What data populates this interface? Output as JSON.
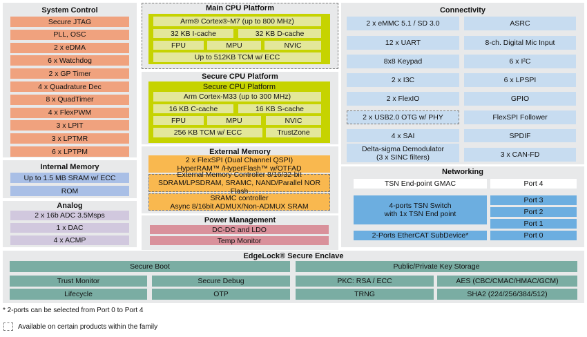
{
  "system_control": {
    "title": "System Control",
    "items": [
      "Secure JTAG",
      "PLL, OSC",
      "2 x eDMA",
      "6 x Watchdog",
      "2 x GP Timer",
      "4 x Quadrature Dec",
      "8 x QuadTimer",
      "4 x FlexPWM",
      "3 x LPIT",
      "3 x LPTMR",
      "6 x LPTPM"
    ]
  },
  "internal_memory": {
    "title": "Internal Memory",
    "items": [
      "Up to 1.5 MB SRAM w/ ECC",
      "ROM"
    ]
  },
  "analog": {
    "title": "Analog",
    "items": [
      "2 x 16b ADC 3.5Msps",
      "1 x DAC",
      "4 x ACMP"
    ]
  },
  "main_cpu": {
    "title": "Main CPU Platform",
    "core": "Arm® Cortex®-M7 (up to 800 MHz)",
    "icache": "32 KB I-cache",
    "dcache": "32 KB D-cache",
    "fpu": "FPU",
    "mpu": "MPU",
    "nvic": "NVIC",
    "tcm": "Up to 512KB TCM w/ ECC"
  },
  "secure_cpu": {
    "title": "Secure CPU Platform",
    "subtitle": "Secure CPU Platform",
    "core": "Arm Cortex-M33 (up to 300 MHz)",
    "ccache": "16 KB C-cache",
    "scache": "16 KB S-cache",
    "fpu": "FPU",
    "mpu": "MPU",
    "nvic": "NVIC",
    "tcm": "256 KB TCM w/ ECC",
    "trustzone": "TrustZone"
  },
  "external_memory": {
    "title": "External Memory",
    "flexspi": "2 x FlexSPI (Dual Channel QSPI)\nHyperRAM™ /HyperFlash™ w/OTFAD",
    "emc": "External Memory Controller 8/16/32-bit\nSDRAM/LPSDRAM, SRAMC, NAND/Parallel NOR Flash",
    "sramc": "SRAMC controller\nAsync 8/16bit ADMUX/Non-ADMUX SRAM"
  },
  "power": {
    "title": "Power Management",
    "items": [
      "DC-DC and LDO",
      "Temp Monitor"
    ]
  },
  "connectivity": {
    "title": "Connectivity",
    "left": [
      "2 x eMMC 5.1 / SD 3.0",
      "12 x UART",
      "8x8 Keypad",
      "2 x I3C",
      "2 x FlexIO",
      "2 x USB2.0 OTG w/ PHY",
      "4 x SAI",
      "Delta-sigma Demodulator\n(3 x SINC filters)"
    ],
    "right": [
      "ASRC",
      "8-ch. Digital Mic Input",
      "6 x I²C",
      "6 x LPSPI",
      "GPIO",
      "FlexSPI Follower",
      "SPDIF",
      "3 x CAN-FD"
    ]
  },
  "networking": {
    "title": "Networking",
    "gmac": "TSN End-point GMAC",
    "switch": "4-ports TSN Switch\nwith 1x TSN End point",
    "ethercat": "2-Ports EtherCAT SubDevice*",
    "ports": [
      "Port 4",
      "Port 3",
      "Port 2",
      "Port 1",
      "Port 0"
    ]
  },
  "edgelock": {
    "title": "EdgeLock® Secure Enclave",
    "items": [
      "Secure Boot",
      "Public/Private Key Storage",
      "Trust Monitor",
      "Secure Debug",
      "PKC: RSA / ECC",
      "AES (CBC/CMAC/HMAC/GCM)",
      "Lifecycle",
      "OTP",
      "TRNG",
      "SHA2 (224/256/384/512)"
    ]
  },
  "footnote": "* 2-ports can be selected from Port 0 to Port 4",
  "legend": "Available on certain products within the family",
  "colors": {
    "system_control": "#f0a27e",
    "cpu_outer": "#c6d300",
    "cpu_inner": "#e3e79a",
    "external_memory": "#f9b84f",
    "power": "#d9919b",
    "internal_memory": "#a9bfe6",
    "analog": "#d1c8de",
    "connectivity": "#c7dcf0",
    "networking": "#6caee0",
    "edgelock": "#7aada3"
  }
}
